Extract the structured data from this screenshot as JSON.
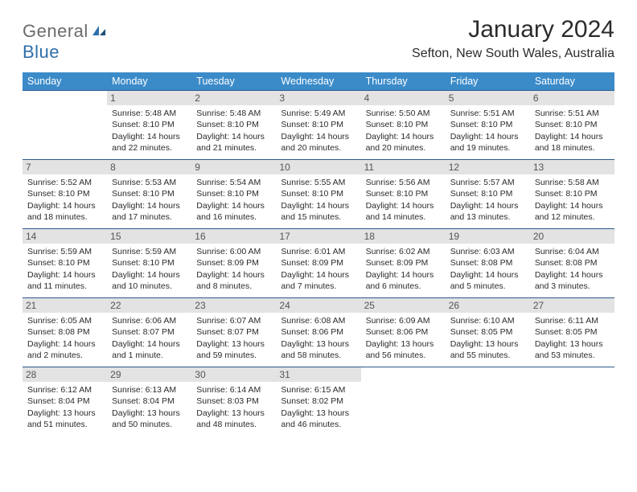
{
  "logo": {
    "text1": "General",
    "text2": "Blue"
  },
  "title": "January 2024",
  "location": "Sefton, New South Wales, Australia",
  "dayHeaders": [
    "Sunday",
    "Monday",
    "Tuesday",
    "Wednesday",
    "Thursday",
    "Friday",
    "Saturday"
  ],
  "colors": {
    "headerBg": "#3b8bc9",
    "borderLine": "#2c5a8a",
    "dayNumBg": "#e3e3e3",
    "logoGray": "#6b6b6b",
    "logoBlue": "#2f6faa"
  },
  "weeks": [
    [
      null,
      {
        "n": "1",
        "sr": "Sunrise: 5:48 AM",
        "ss": "Sunset: 8:10 PM",
        "d1": "Daylight: 14 hours",
        "d2": "and 22 minutes."
      },
      {
        "n": "2",
        "sr": "Sunrise: 5:48 AM",
        "ss": "Sunset: 8:10 PM",
        "d1": "Daylight: 14 hours",
        "d2": "and 21 minutes."
      },
      {
        "n": "3",
        "sr": "Sunrise: 5:49 AM",
        "ss": "Sunset: 8:10 PM",
        "d1": "Daylight: 14 hours",
        "d2": "and 20 minutes."
      },
      {
        "n": "4",
        "sr": "Sunrise: 5:50 AM",
        "ss": "Sunset: 8:10 PM",
        "d1": "Daylight: 14 hours",
        "d2": "and 20 minutes."
      },
      {
        "n": "5",
        "sr": "Sunrise: 5:51 AM",
        "ss": "Sunset: 8:10 PM",
        "d1": "Daylight: 14 hours",
        "d2": "and 19 minutes."
      },
      {
        "n": "6",
        "sr": "Sunrise: 5:51 AM",
        "ss": "Sunset: 8:10 PM",
        "d1": "Daylight: 14 hours",
        "d2": "and 18 minutes."
      }
    ],
    [
      {
        "n": "7",
        "sr": "Sunrise: 5:52 AM",
        "ss": "Sunset: 8:10 PM",
        "d1": "Daylight: 14 hours",
        "d2": "and 18 minutes."
      },
      {
        "n": "8",
        "sr": "Sunrise: 5:53 AM",
        "ss": "Sunset: 8:10 PM",
        "d1": "Daylight: 14 hours",
        "d2": "and 17 minutes."
      },
      {
        "n": "9",
        "sr": "Sunrise: 5:54 AM",
        "ss": "Sunset: 8:10 PM",
        "d1": "Daylight: 14 hours",
        "d2": "and 16 minutes."
      },
      {
        "n": "10",
        "sr": "Sunrise: 5:55 AM",
        "ss": "Sunset: 8:10 PM",
        "d1": "Daylight: 14 hours",
        "d2": "and 15 minutes."
      },
      {
        "n": "11",
        "sr": "Sunrise: 5:56 AM",
        "ss": "Sunset: 8:10 PM",
        "d1": "Daylight: 14 hours",
        "d2": "and 14 minutes."
      },
      {
        "n": "12",
        "sr": "Sunrise: 5:57 AM",
        "ss": "Sunset: 8:10 PM",
        "d1": "Daylight: 14 hours",
        "d2": "and 13 minutes."
      },
      {
        "n": "13",
        "sr": "Sunrise: 5:58 AM",
        "ss": "Sunset: 8:10 PM",
        "d1": "Daylight: 14 hours",
        "d2": "and 12 minutes."
      }
    ],
    [
      {
        "n": "14",
        "sr": "Sunrise: 5:59 AM",
        "ss": "Sunset: 8:10 PM",
        "d1": "Daylight: 14 hours",
        "d2": "and 11 minutes."
      },
      {
        "n": "15",
        "sr": "Sunrise: 5:59 AM",
        "ss": "Sunset: 8:10 PM",
        "d1": "Daylight: 14 hours",
        "d2": "and 10 minutes."
      },
      {
        "n": "16",
        "sr": "Sunrise: 6:00 AM",
        "ss": "Sunset: 8:09 PM",
        "d1": "Daylight: 14 hours",
        "d2": "and 8 minutes."
      },
      {
        "n": "17",
        "sr": "Sunrise: 6:01 AM",
        "ss": "Sunset: 8:09 PM",
        "d1": "Daylight: 14 hours",
        "d2": "and 7 minutes."
      },
      {
        "n": "18",
        "sr": "Sunrise: 6:02 AM",
        "ss": "Sunset: 8:09 PM",
        "d1": "Daylight: 14 hours",
        "d2": "and 6 minutes."
      },
      {
        "n": "19",
        "sr": "Sunrise: 6:03 AM",
        "ss": "Sunset: 8:08 PM",
        "d1": "Daylight: 14 hours",
        "d2": "and 5 minutes."
      },
      {
        "n": "20",
        "sr": "Sunrise: 6:04 AM",
        "ss": "Sunset: 8:08 PM",
        "d1": "Daylight: 14 hours",
        "d2": "and 3 minutes."
      }
    ],
    [
      {
        "n": "21",
        "sr": "Sunrise: 6:05 AM",
        "ss": "Sunset: 8:08 PM",
        "d1": "Daylight: 14 hours",
        "d2": "and 2 minutes."
      },
      {
        "n": "22",
        "sr": "Sunrise: 6:06 AM",
        "ss": "Sunset: 8:07 PM",
        "d1": "Daylight: 14 hours",
        "d2": "and 1 minute."
      },
      {
        "n": "23",
        "sr": "Sunrise: 6:07 AM",
        "ss": "Sunset: 8:07 PM",
        "d1": "Daylight: 13 hours",
        "d2": "and 59 minutes."
      },
      {
        "n": "24",
        "sr": "Sunrise: 6:08 AM",
        "ss": "Sunset: 8:06 PM",
        "d1": "Daylight: 13 hours",
        "d2": "and 58 minutes."
      },
      {
        "n": "25",
        "sr": "Sunrise: 6:09 AM",
        "ss": "Sunset: 8:06 PM",
        "d1": "Daylight: 13 hours",
        "d2": "and 56 minutes."
      },
      {
        "n": "26",
        "sr": "Sunrise: 6:10 AM",
        "ss": "Sunset: 8:05 PM",
        "d1": "Daylight: 13 hours",
        "d2": "and 55 minutes."
      },
      {
        "n": "27",
        "sr": "Sunrise: 6:11 AM",
        "ss": "Sunset: 8:05 PM",
        "d1": "Daylight: 13 hours",
        "d2": "and 53 minutes."
      }
    ],
    [
      {
        "n": "28",
        "sr": "Sunrise: 6:12 AM",
        "ss": "Sunset: 8:04 PM",
        "d1": "Daylight: 13 hours",
        "d2": "and 51 minutes."
      },
      {
        "n": "29",
        "sr": "Sunrise: 6:13 AM",
        "ss": "Sunset: 8:04 PM",
        "d1": "Daylight: 13 hours",
        "d2": "and 50 minutes."
      },
      {
        "n": "30",
        "sr": "Sunrise: 6:14 AM",
        "ss": "Sunset: 8:03 PM",
        "d1": "Daylight: 13 hours",
        "d2": "and 48 minutes."
      },
      {
        "n": "31",
        "sr": "Sunrise: 6:15 AM",
        "ss": "Sunset: 8:02 PM",
        "d1": "Daylight: 13 hours",
        "d2": "and 46 minutes."
      },
      null,
      null,
      null
    ]
  ]
}
